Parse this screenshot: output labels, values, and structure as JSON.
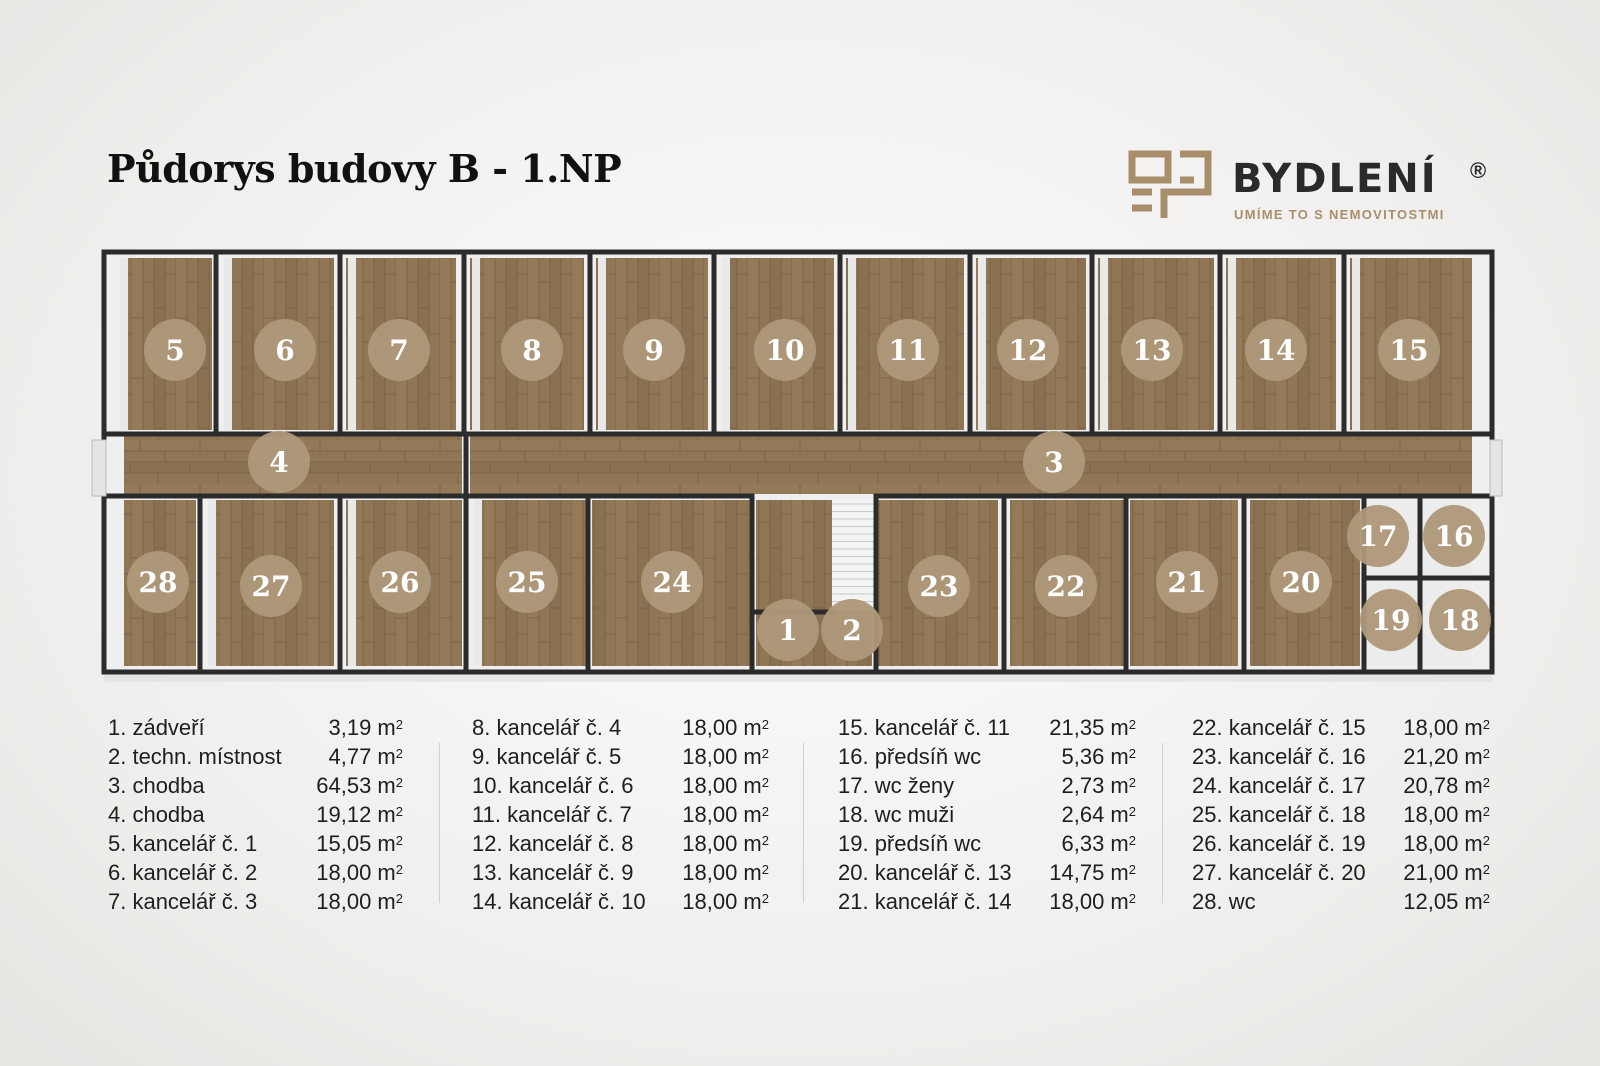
{
  "title": "Půdorys budovy B - 1.NP",
  "logo": {
    "name": "BYDLENÍ",
    "reg": "®",
    "tagline": "UMÍME TO S NEMOVITOSTMI",
    "mark_icon": "bydleni-logo-mark",
    "brand_color": "#a88e6a"
  },
  "colors": {
    "badge": "#ae987a",
    "floor": "#8f7655",
    "wall": "#2b2b2b",
    "wall_face": "#e9e9e9"
  },
  "room_numbers": [
    "1",
    "2",
    "3",
    "4",
    "5",
    "6",
    "7",
    "8",
    "9",
    "10",
    "11",
    "12",
    "13",
    "14",
    "15",
    "16",
    "17",
    "18",
    "19",
    "20",
    "21",
    "22",
    "23",
    "24",
    "25",
    "26",
    "27",
    "28"
  ],
  "legend": [
    [
      {
        "label": "1. zádveří",
        "area": "3,19 m",
        "unit": "2"
      },
      {
        "label": "2. techn. místnost",
        "area": "4,77 m",
        "unit": "2"
      },
      {
        "label": "3. chodba",
        "area": "64,53 m",
        "unit": "2"
      },
      {
        "label": "4. chodba",
        "area": "19,12 m",
        "unit": "2"
      },
      {
        "label": "5. kancelář č. 1",
        "area": "15,05 m",
        "unit": "2"
      },
      {
        "label": "6. kancelář č. 2",
        "area": "18,00 m",
        "unit": "2"
      },
      {
        "label": "7. kancelář č. 3",
        "area": "18,00 m",
        "unit": "2"
      }
    ],
    [
      {
        "label": "8. kancelář č. 4",
        "area": "18,00 m",
        "unit": "2"
      },
      {
        "label": "9. kancelář č. 5",
        "area": "18,00 m",
        "unit": "2"
      },
      {
        "label": "10. kancelář č. 6",
        "area": "18,00 m",
        "unit": "2"
      },
      {
        "label": "11. kancelář č. 7",
        "area": "18,00 m",
        "unit": "2"
      },
      {
        "label": "12. kancelář č. 8",
        "area": "18,00 m",
        "unit": "2"
      },
      {
        "label": "13. kancelář č. 9",
        "area": "18,00 m",
        "unit": "2"
      },
      {
        "label": "14. kancelář č. 10",
        "area": "18,00 m",
        "unit": "2"
      }
    ],
    [
      {
        "label": "15. kancelář č. 11",
        "area": "21,35 m",
        "unit": "2"
      },
      {
        "label": "16. předsíň wc",
        "area": "5,36 m",
        "unit": "2"
      },
      {
        "label": "17. wc ženy",
        "area": "2,73 m",
        "unit": "2"
      },
      {
        "label": "18. wc muži",
        "area": "2,64 m",
        "unit": "2"
      },
      {
        "label": "19. předsíň wc",
        "area": "6,33 m",
        "unit": "2"
      },
      {
        "label": "20. kancelář č. 13",
        "area": "14,75 m",
        "unit": "2"
      },
      {
        "label": "21. kancelář č. 14",
        "area": "18,00 m",
        "unit": "2"
      }
    ],
    [
      {
        "label": "22. kancelář č. 15",
        "area": "18,00 m",
        "unit": "2"
      },
      {
        "label": "23. kancelář č. 16",
        "area": "21,20 m",
        "unit": "2"
      },
      {
        "label": "24. kancelář č. 17",
        "area": "20,78 m",
        "unit": "2"
      },
      {
        "label": "25. kancelář č. 18",
        "area": "18,00 m",
        "unit": "2"
      },
      {
        "label": "26. kancelář č. 19",
        "area": "18,00 m",
        "unit": "2"
      },
      {
        "label": "27. kancelář č. 20",
        "area": "21,00 m",
        "unit": "2"
      },
      {
        "label": "28. wc",
        "area": "12,05 m",
        "unit": "2"
      }
    ]
  ]
}
